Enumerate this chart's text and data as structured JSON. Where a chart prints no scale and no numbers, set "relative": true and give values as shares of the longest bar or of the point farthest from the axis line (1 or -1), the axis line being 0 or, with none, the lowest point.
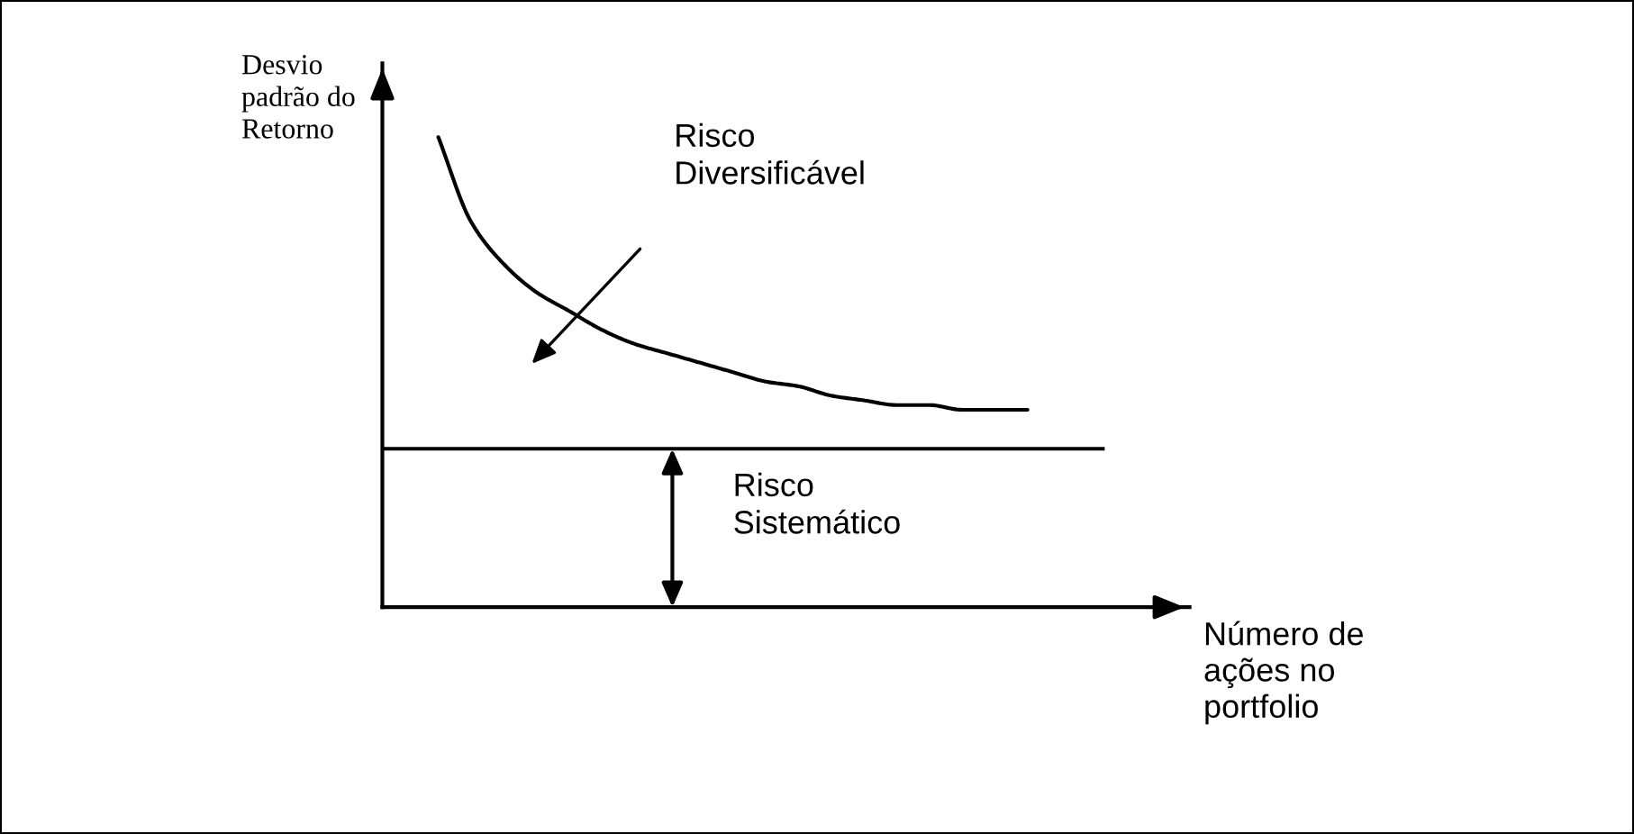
{
  "chart_data": {
    "type": "line",
    "relative": true,
    "xlabel": "Número de ações no portfolio",
    "ylabel": "Desvio padrão do Retorno",
    "categories": [
      null,
      null,
      null,
      null,
      null,
      null,
      null,
      null,
      null,
      null,
      null,
      null,
      null,
      null,
      null,
      null,
      null,
      null,
      null
    ],
    "series": [
      {
        "color": "#000000",
        "values": [
          1.0,
          0.82,
          0.73,
          0.67,
          0.63,
          0.59,
          0.56,
          0.54,
          0.52,
          0.5,
          0.48,
          0.47,
          0.45,
          0.44,
          0.43,
          0.43,
          0.42,
          0.42,
          0.42
        ]
      }
    ],
    "ref_lines": [
      {
        "axis": "y",
        "value": 0.337,
        "color": "#000000",
        "line_style": "solid"
      }
    ],
    "annotations": [
      "Risco Diversificável",
      "Risco Sistemático"
    ],
    "grid": false,
    "legend": false,
    "tick_labels": false,
    "marker": "none",
    "line_style": "solid"
  }
}
